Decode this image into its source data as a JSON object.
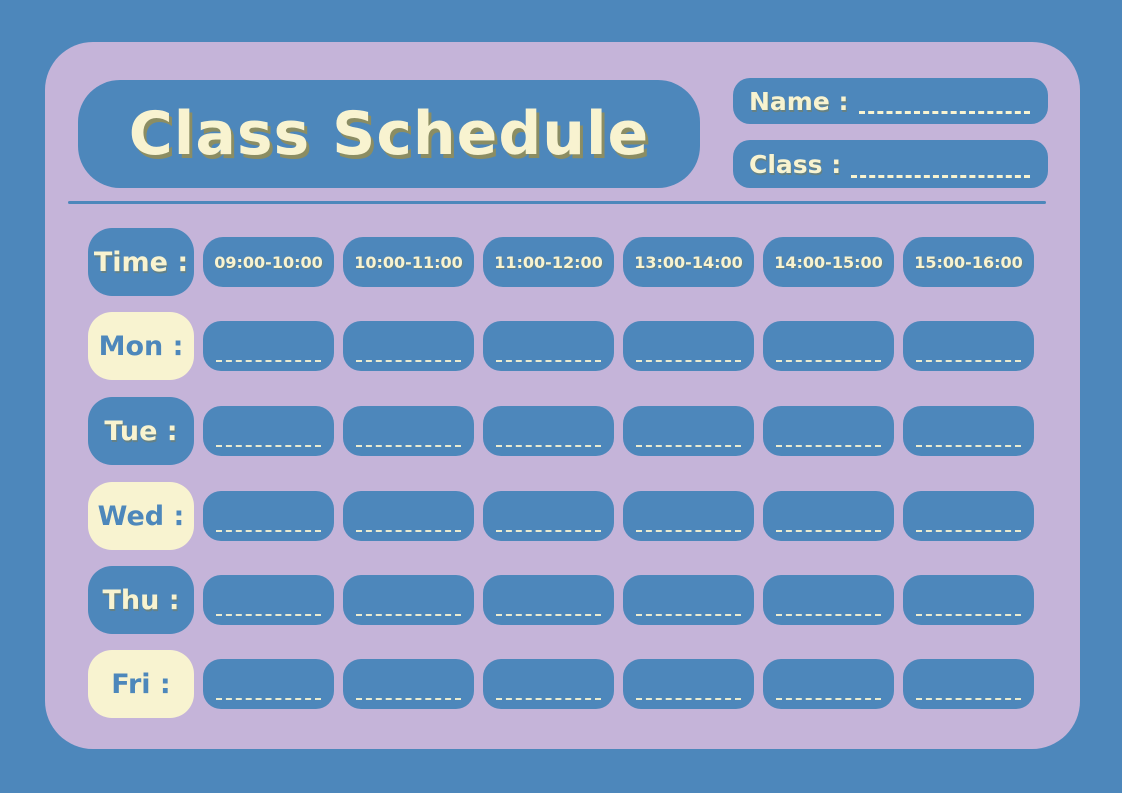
{
  "header": {
    "title": "Class Schedule",
    "name_label": "Name :",
    "class_label": "Class :"
  },
  "schedule": {
    "time_label": "Time :",
    "time_slots": [
      "09:00-10:00",
      "10:00-11:00",
      "11:00-12:00",
      "13:00-14:00",
      "14:00-15:00",
      "15:00-16:00"
    ],
    "days": [
      "Mon :",
      "Tue :",
      "Wed :",
      "Thu :",
      "Fri :"
    ]
  },
  "colors": {
    "background_blue": "#4d87bb",
    "card_purple": "#c5b4d9",
    "pill_blue": "#4d87bb",
    "cream": "#f8f3d0",
    "title_shadow_olive": "#8b8d63"
  }
}
